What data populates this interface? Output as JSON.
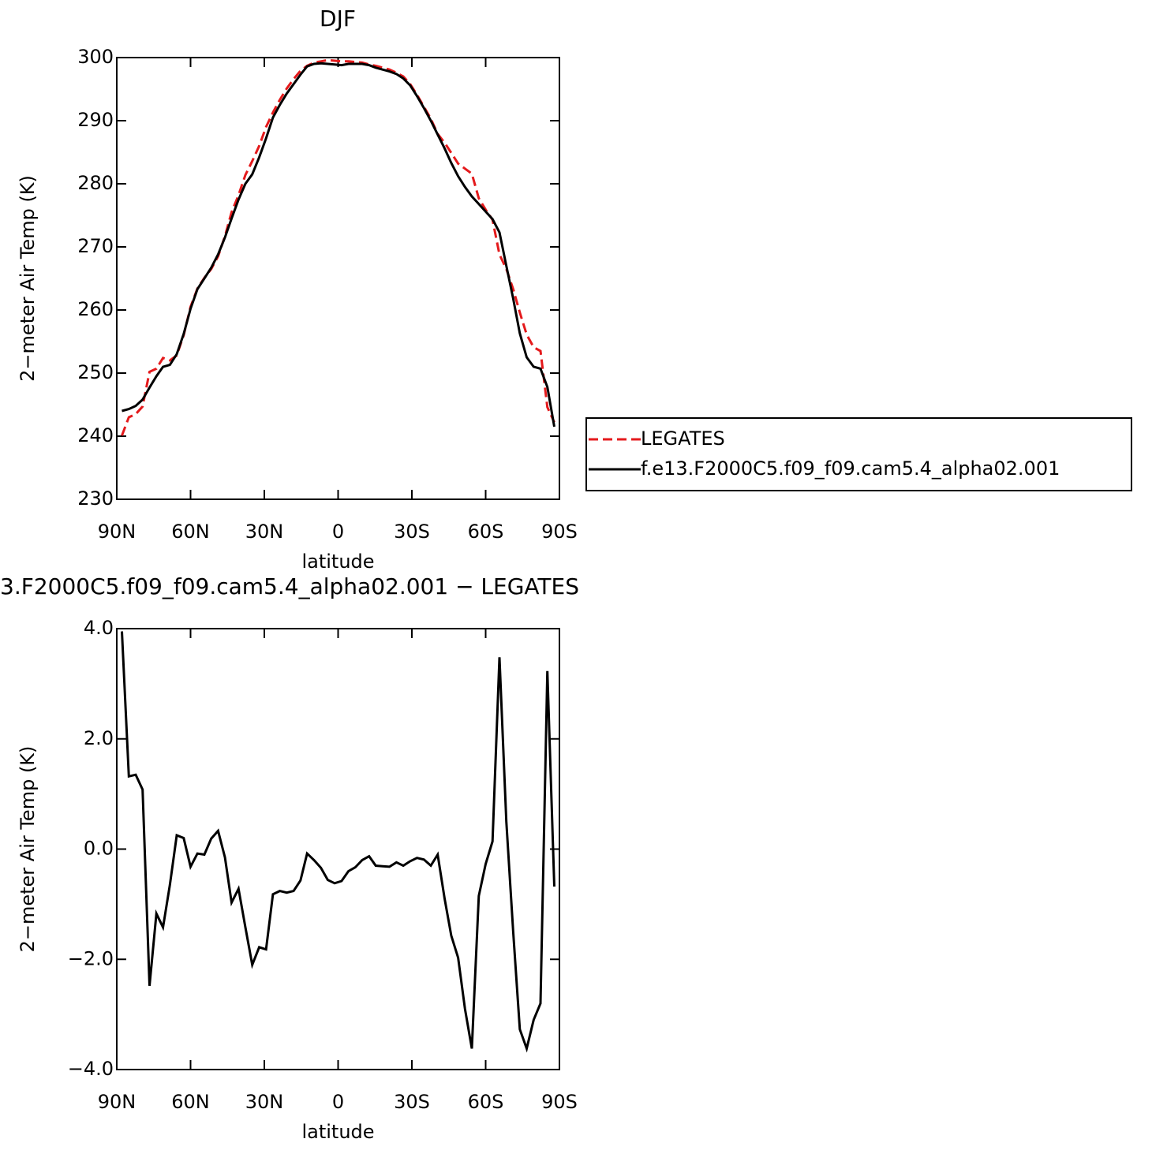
{
  "chart_data": [
    {
      "type": "line",
      "title": "DJF",
      "xlabel": "latitude",
      "ylabel": "2−meter Air Temp (K)",
      "xlim": [
        90,
        -90
      ],
      "xticks": [
        {
          "value": 90,
          "label": "90N"
        },
        {
          "value": 60,
          "label": "60N"
        },
        {
          "value": 30,
          "label": "30N"
        },
        0,
        {
          "value": -30,
          "label": "30S"
        },
        {
          "value": -60,
          "label": "60S"
        },
        {
          "value": -90,
          "label": "90S"
        }
      ],
      "ylim": [
        230,
        300
      ],
      "yticks": [
        230,
        240,
        250,
        260,
        270,
        280,
        290,
        300
      ],
      "legend": "right",
      "x": [
        87.9,
        85.1,
        82.3,
        79.5,
        76.7,
        73.9,
        71.2,
        68.4,
        65.6,
        62.8,
        60.0,
        57.2,
        54.4,
        51.6,
        48.8,
        46.0,
        43.3,
        40.5,
        37.7,
        34.9,
        32.1,
        29.3,
        26.5,
        23.7,
        20.9,
        18.1,
        15.3,
        12.6,
        9.8,
        7.0,
        4.2,
        1.4,
        -1.4,
        -4.2,
        -7.0,
        -9.8,
        -12.6,
        -15.3,
        -18.1,
        -20.9,
        -23.7,
        -26.5,
        -29.3,
        -32.1,
        -34.9,
        -37.7,
        -40.5,
        -43.3,
        -46.0,
        -48.8,
        -51.6,
        -54.4,
        -57.2,
        -60.0,
        -62.8,
        -65.6,
        -68.4,
        -71.2,
        -73.9,
        -76.7,
        -79.5,
        -82.3,
        -85.1,
        -87.9
      ],
      "series": [
        {
          "name": "LEGATES",
          "color": "#e41a1c",
          "line_style": "dashed",
          "values": [
            240.1,
            243.0,
            243.5,
            244.7,
            250.2,
            250.7,
            252.4,
            252.0,
            252.8,
            256.0,
            260.5,
            263.4,
            265.1,
            266.5,
            268.5,
            271.7,
            275.5,
            278.2,
            281.4,
            283.6,
            286.0,
            289.0,
            291.3,
            293.3,
            295.1,
            296.6,
            297.9,
            298.7,
            299.2,
            299.4,
            299.6,
            299.5,
            299.4,
            299.4,
            299.3,
            299.2,
            298.9,
            298.7,
            298.4,
            298.1,
            297.6,
            297.0,
            295.8,
            294.1,
            292.2,
            290.3,
            287.9,
            286.5,
            284.9,
            283.2,
            282.4,
            281.6,
            277.7,
            275.9,
            274.3,
            268.8,
            266.5,
            263.3,
            259.6,
            256.1,
            254.1,
            253.5,
            244.6,
            242.2
          ]
        },
        {
          "name": "f.e13.F2000C5.f09_f09.cam5.4_alpha02.001",
          "color": "#000000",
          "line_style": "solid",
          "values": [
            244.0,
            244.3,
            244.8,
            245.8,
            247.7,
            249.5,
            251.0,
            251.3,
            253.0,
            256.2,
            260.2,
            263.3,
            265.0,
            266.7,
            268.8,
            271.5,
            274.5,
            277.5,
            280.0,
            281.5,
            284.2,
            287.2,
            290.5,
            292.5,
            294.3,
            295.8,
            297.3,
            298.6,
            299.0,
            299.1,
            299.0,
            298.9,
            298.8,
            299.0,
            299.0,
            299.0,
            298.8,
            298.4,
            298.1,
            297.8,
            297.4,
            296.7,
            295.6,
            293.9,
            292.0,
            290.0,
            287.8,
            285.6,
            283.3,
            281.2,
            279.5,
            278.0,
            276.8,
            275.6,
            274.4,
            272.3,
            267.0,
            261.8,
            256.3,
            252.5,
            251.0,
            250.7,
            247.8,
            241.5
          ]
        }
      ]
    },
    {
      "type": "line",
      "title": "3.F2000C5.f09_f09.cam5.4_alpha02.001  −  LEGATES",
      "xlabel": "latitude",
      "ylabel": "2−meter Air Temp (K)",
      "xlim": [
        90,
        -90
      ],
      "xticks": [
        {
          "value": 90,
          "label": "90N"
        },
        {
          "value": 60,
          "label": "60N"
        },
        {
          "value": 30,
          "label": "30N"
        },
        0,
        {
          "value": -30,
          "label": "30S"
        },
        {
          "value": -60,
          "label": "60S"
        },
        {
          "value": -90,
          "label": "90S"
        }
      ],
      "ylim": [
        -4,
        4
      ],
      "yticks": [
        {
          "value": -4,
          "label": "−4.0"
        },
        {
          "value": -2,
          "label": "−2.0"
        },
        {
          "value": 0,
          "label": "0.0"
        },
        {
          "value": 2,
          "label": "2.0"
        },
        {
          "value": 4,
          "label": "4.0"
        }
      ],
      "x": [
        87.9,
        85.1,
        82.3,
        79.5,
        76.7,
        73.9,
        71.2,
        68.4,
        65.6,
        62.8,
        60.0,
        57.2,
        54.4,
        51.6,
        48.8,
        46.0,
        43.3,
        40.5,
        37.7,
        34.9,
        32.1,
        29.3,
        26.5,
        23.7,
        20.9,
        18.1,
        15.3,
        12.6,
        9.8,
        7.0,
        4.2,
        1.4,
        -1.4,
        -4.2,
        -7.0,
        -9.8,
        -12.6,
        -15.3,
        -18.1,
        -20.9,
        -23.7,
        -26.5,
        -29.3,
        -32.1,
        -34.9,
        -37.7,
        -40.5,
        -43.3,
        -46.0,
        -48.8,
        -51.6,
        -54.4,
        -57.2,
        -60.0,
        -62.8,
        -65.6,
        -68.4,
        -71.2,
        -73.9,
        -76.7,
        -79.5,
        -82.3,
        -85.1,
        -87.9
      ],
      "series": [
        {
          "color": "#000000",
          "line_style": "solid",
          "values": [
            3.95,
            1.32,
            1.35,
            1.08,
            -2.48,
            -1.17,
            -1.42,
            -0.65,
            0.25,
            0.2,
            -0.32,
            -0.08,
            -0.1,
            0.19,
            0.33,
            -0.15,
            -0.97,
            -0.72,
            -1.42,
            -2.1,
            -1.78,
            -1.82,
            -0.82,
            -0.76,
            -0.79,
            -0.76,
            -0.57,
            -0.08,
            -0.2,
            -0.34,
            -0.56,
            -0.62,
            -0.58,
            -0.4,
            -0.33,
            -0.2,
            -0.13,
            -0.3,
            -0.31,
            -0.32,
            -0.24,
            -0.3,
            -0.22,
            -0.16,
            -0.19,
            -0.3,
            -0.1,
            -0.9,
            -1.57,
            -1.97,
            -2.9,
            -3.62,
            -0.85,
            -0.27,
            0.14,
            3.48,
            0.5,
            -1.5,
            -3.27,
            -3.62,
            -3.1,
            -2.8,
            3.23,
            -0.68
          ]
        }
      ]
    }
  ]
}
